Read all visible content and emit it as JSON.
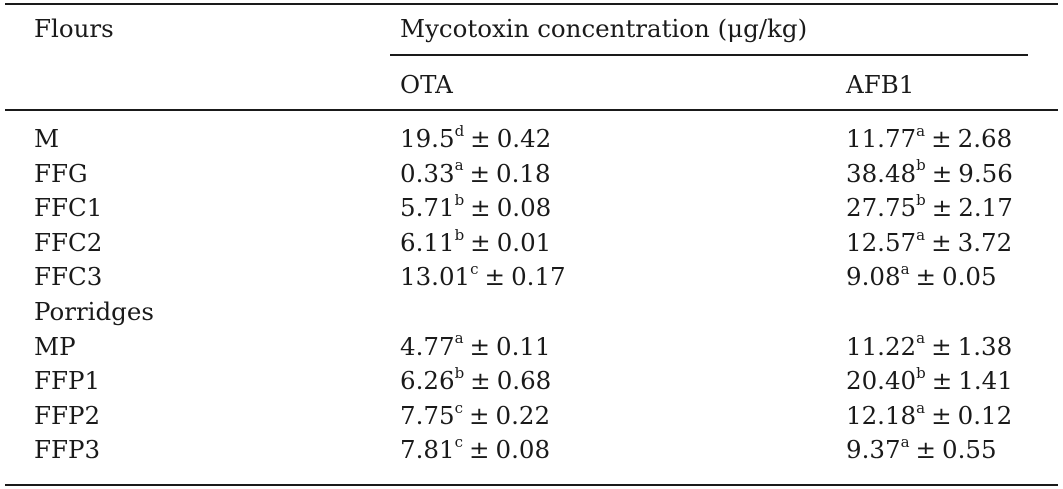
{
  "header": {
    "col1": "Flours",
    "group": "Mycotoxin concentration (μg/kg)",
    "ota": "OTA",
    "afb1": "AFB1"
  },
  "pm_symbol": "±",
  "rows": [
    {
      "name": "M",
      "ota": {
        "mean": "19.5",
        "sup": "d",
        "sd": "0.42"
      },
      "afb1": {
        "mean": "11.77",
        "sup": "a",
        "sd": "2.68"
      }
    },
    {
      "name": "FFG",
      "ota": {
        "mean": "0.33",
        "sup": "a",
        "sd": "0.18"
      },
      "afb1": {
        "mean": "38.48",
        "sup": "b",
        "sd": "9.56"
      }
    },
    {
      "name": "FFC1",
      "ota": {
        "mean": "5.71",
        "sup": "b",
        "sd": "0.08"
      },
      "afb1": {
        "mean": "27.75",
        "sup": "b",
        "sd": "2.17"
      }
    },
    {
      "name": "FFC2",
      "ota": {
        "mean": "6.11",
        "sup": "b",
        "sd": "0.01"
      },
      "afb1": {
        "mean": "12.57",
        "sup": "a",
        "sd": "3.72"
      }
    },
    {
      "name": "FFC3",
      "ota": {
        "mean": "13.01",
        "sup": "c",
        "sd": "0.17"
      },
      "afb1": {
        "mean": "9.08",
        "sup": "a",
        "sd": "0.05"
      }
    }
  ],
  "section2": {
    "label": "Porridges",
    "rows": [
      {
        "name": "MP",
        "ota": {
          "mean": "4.77",
          "sup": "a",
          "sd": "0.11"
        },
        "afb1": {
          "mean": "11.22",
          "sup": "a",
          "sd": "1.38"
        }
      },
      {
        "name": "FFP1",
        "ota": {
          "mean": "6.26",
          "sup": "b",
          "sd": "0.68"
        },
        "afb1": {
          "mean": "20.40",
          "sup": "b",
          "sd": "1.41"
        }
      },
      {
        "name": "FFP2",
        "ota": {
          "mean": "7.75",
          "sup": "c",
          "sd": "0.22"
        },
        "afb1": {
          "mean": "12.18",
          "sup": "a",
          "sd": "0.12"
        }
      },
      {
        "name": "FFP3",
        "ota": {
          "mean": "7.81",
          "sup": "c",
          "sd": "0.08"
        },
        "afb1": {
          "mean": "9.37",
          "sup": "a",
          "sd": "0.55"
        }
      }
    ]
  }
}
